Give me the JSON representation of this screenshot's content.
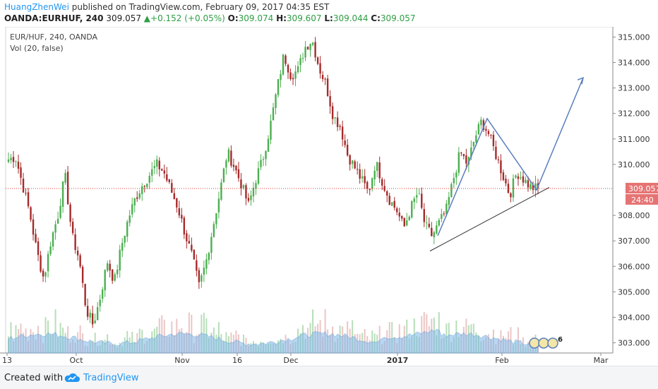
{
  "header": {
    "author": "HuangZhenWei",
    "published_text": "published on TradingView.com, February 09, 2017 04:35 EST",
    "symbol": "OANDA:EURHUF, 240",
    "last_price": "309.057",
    "change_arrow": "▲",
    "change": "+0.152 (+0.05%)",
    "open_label": "O:",
    "open": "309.074",
    "high_label": "H:",
    "high": "309.607",
    "low_label": "L:",
    "low": "309.044",
    "close_label": "C:",
    "close": "309.057"
  },
  "legend": {
    "series": "EUR/HUF, 240, OANDA",
    "indicator": "Vol (20, false)"
  },
  "price_tag": {
    "value": "309.057",
    "countdown": "24:40"
  },
  "bubble_count": "6",
  "footer": {
    "created_with": "Created with",
    "brand": "TradingView"
  },
  "colors": {
    "up": "#4caf50",
    "down": "#a52a2a",
    "price_line": "#e53935",
    "price_tag_bg": "#e57373",
    "volume_area": "#7fb7e8",
    "drawing": "#5b7fbf",
    "trendline": "#333333",
    "brand": "#2196f3"
  },
  "chart_data": {
    "type": "candlestick",
    "symbol": "EUR/HUF",
    "timeframe": "240",
    "source": "OANDA",
    "ylim": [
      302.6,
      315.4
    ],
    "y_ticks": [
      "315.000",
      "314.000",
      "313.000",
      "312.000",
      "311.000",
      "310.000",
      "308.000",
      "307.000",
      "306.000",
      "305.000",
      "304.000",
      "303.000"
    ],
    "x_ticks": [
      "13",
      "Oct",
      "Nov",
      "16",
      "Dec",
      "2017",
      "Feb",
      "Mar"
    ],
    "current_price": 309.057,
    "close_path_points": [
      [
        "13",
        310.2
      ],
      [
        "",
        310.3
      ],
      [
        "",
        309.2
      ],
      [
        "",
        308.1
      ],
      [
        "",
        306.6
      ],
      [
        "",
        305.5
      ],
      [
        "",
        307.0
      ],
      [
        "",
        308.0
      ],
      [
        "",
        309.6
      ],
      [
        "",
        307.2
      ],
      [
        "",
        306.3
      ],
      [
        "",
        304.3
      ],
      [
        "",
        303.7
      ],
      [
        "Oct",
        304.8
      ],
      [
        "",
        306.2
      ],
      [
        "",
        305.4
      ],
      [
        "",
        306.8
      ],
      [
        "",
        307.9
      ],
      [
        "",
        308.7
      ],
      [
        "",
        309.2
      ],
      [
        "",
        309.6
      ],
      [
        "",
        310.0
      ],
      [
        "",
        309.7
      ],
      [
        "",
        309.0
      ],
      [
        "",
        308.3
      ],
      [
        "Nov",
        307.3
      ],
      [
        "",
        306.4
      ],
      [
        "",
        305.2
      ],
      [
        "",
        306.2
      ],
      [
        "",
        307.6
      ],
      [
        "",
        309.0
      ],
      [
        "16",
        310.5
      ],
      [
        "",
        309.9
      ],
      [
        "",
        309.2
      ],
      [
        "",
        308.4
      ],
      [
        "",
        309.4
      ],
      [
        "",
        310.2
      ],
      [
        "",
        311.4
      ],
      [
        "",
        312.9
      ],
      [
        "Dec",
        314.3
      ],
      [
        "",
        313.5
      ],
      [
        "",
        313.7
      ],
      [
        "",
        314.6
      ],
      [
        "",
        314.9
      ],
      [
        "",
        313.8
      ],
      [
        "",
        313.1
      ],
      [
        "",
        311.9
      ],
      [
        "",
        311.5
      ],
      [
        "",
        310.4
      ],
      [
        "",
        309.9
      ],
      [
        "",
        309.4
      ],
      [
        "",
        308.9
      ],
      [
        "",
        310.1
      ],
      [
        "2017",
        309.3
      ],
      [
        "",
        308.6
      ],
      [
        "",
        308.2
      ],
      [
        "",
        307.5
      ],
      [
        "",
        308.3
      ],
      [
        "",
        308.9
      ],
      [
        "",
        307.6
      ],
      [
        "",
        307.2
      ],
      [
        "",
        307.7
      ],
      [
        "",
        308.2
      ],
      [
        "",
        309.4
      ],
      [
        "",
        310.5
      ],
      [
        "",
        310.0
      ],
      [
        "",
        311.0
      ],
      [
        "",
        311.7
      ],
      [
        "",
        311.2
      ],
      [
        "",
        310.4
      ],
      [
        "",
        309.6
      ],
      [
        "Feb",
        308.8
      ],
      [
        "",
        309.7
      ],
      [
        "",
        309.4
      ],
      [
        "",
        309.1
      ],
      [
        "",
        309.06
      ]
    ],
    "annotations": {
      "trendline_support": [
        [
          "2017",
          306.6
        ],
        [
          "Feb",
          309.1
        ]
      ],
      "projection_path": [
        [
          307.2
        ],
        [
          311.8
        ],
        [
          309.0
        ],
        [
          313.4
        ]
      ]
    },
    "volume_indicator": {
      "name": "Vol",
      "length": 20
    }
  }
}
